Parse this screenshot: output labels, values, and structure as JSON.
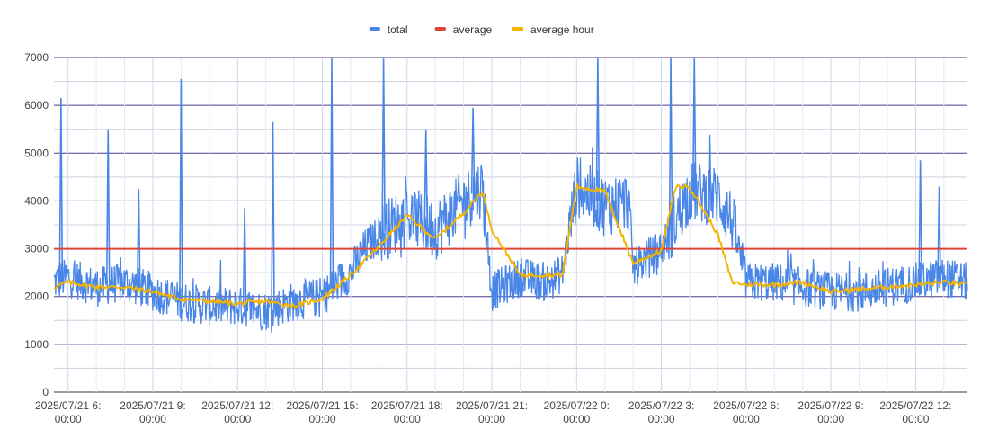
{
  "chart_data": {
    "type": "line",
    "title": "",
    "xlabel": "",
    "ylabel": "",
    "ylim": [
      0,
      7000
    ],
    "xlim": [
      "2025/07/21 05:30",
      "2025/07/22 13:50"
    ],
    "grid": true,
    "legend_position": "top",
    "y_ticks": [
      "0",
      "1000",
      "2000",
      "3000",
      "4000",
      "5000",
      "6000",
      "7000"
    ],
    "y_tick_values": [
      0,
      1000,
      2000,
      3000,
      4000,
      5000,
      6000,
      7000
    ],
    "x_ticks": [
      {
        "x": "2025/07/21 06:00",
        "line1": "2025/07/21 6:",
        "line2": "00:00"
      },
      {
        "x": "2025/07/21 09:00",
        "line1": "2025/07/21 9:",
        "line2": "00:00"
      },
      {
        "x": "2025/07/21 12:00",
        "line1": "2025/07/21 12:",
        "line2": "00:00"
      },
      {
        "x": "2025/07/21 15:00",
        "line1": "2025/07/21 15:",
        "line2": "00:00"
      },
      {
        "x": "2025/07/21 18:00",
        "line1": "2025/07/21 18:",
        "line2": "00:00"
      },
      {
        "x": "2025/07/21 21:00",
        "line1": "2025/07/21 21:",
        "line2": "00:00"
      },
      {
        "x": "2025/07/22 00:00",
        "line1": "2025/07/22 0:",
        "line2": "00:00"
      },
      {
        "x": "2025/07/22 03:00",
        "line1": "2025/07/22 3:",
        "line2": "00:00"
      },
      {
        "x": "2025/07/22 06:00",
        "line1": "2025/07/22 6:",
        "line2": "00:00"
      },
      {
        "x": "2025/07/22 09:00",
        "line1": "2025/07/22 9:",
        "line2": "00:00"
      },
      {
        "x": "2025/07/22 12:00",
        "line1": "2025/07/22 12:",
        "line2": "00:00"
      }
    ],
    "series": [
      {
        "name": "total",
        "color": "#4a86e8",
        "x": [
          "2025/07/21 05:30",
          "2025/07/21 06:00",
          "2025/07/21 07:00",
          "2025/07/21 08:00",
          "2025/07/21 09:00",
          "2025/07/21 10:00",
          "2025/07/21 11:00",
          "2025/07/21 12:00",
          "2025/07/21 13:00",
          "2025/07/21 14:00",
          "2025/07/21 15:00",
          "2025/07/21 16:00",
          "2025/07/21 16:30",
          "2025/07/21 17:00",
          "2025/07/21 18:00",
          "2025/07/21 19:00",
          "2025/07/21 20:00",
          "2025/07/21 20:40",
          "2025/07/21 21:00",
          "2025/07/21 22:00",
          "2025/07/21 23:00",
          "2025/07/21 23:30",
          "2025/07/22 00:00",
          "2025/07/22 01:00",
          "2025/07/22 01:50",
          "2025/07/22 02:00",
          "2025/07/22 03:00",
          "2025/07/22 04:00",
          "2025/07/22 05:00",
          "2025/07/22 05:30",
          "2025/07/22 06:00",
          "2025/07/22 07:00",
          "2025/07/22 08:00",
          "2025/07/22 09:00",
          "2025/07/22 10:00",
          "2025/07/22 11:00",
          "2025/07/22 12:00",
          "2025/07/22 13:00",
          "2025/07/22 13:50"
        ],
        "values": [
          2300,
          2400,
          2200,
          2300,
          2100,
          1900,
          1800,
          1800,
          1700,
          1900,
          2000,
          2500,
          3000,
          3300,
          3700,
          3400,
          4000,
          4300,
          2100,
          2400,
          2300,
          2500,
          4300,
          3900,
          4000,
          2600,
          3000,
          4200,
          4100,
          3600,
          2300,
          2300,
          2200,
          2100,
          2100,
          2200,
          2300,
          2400,
          2300
        ],
        "spikes": [
          {
            "x": "2025/07/21 05:45",
            "value": 6150
          },
          {
            "x": "2025/07/21 07:25",
            "value": 5500
          },
          {
            "x": "2025/07/21 08:30",
            "value": 4250
          },
          {
            "x": "2025/07/21 10:00",
            "value": 6550
          },
          {
            "x": "2025/07/21 12:15",
            "value": 3850
          },
          {
            "x": "2025/07/21 13:15",
            "value": 5650
          },
          {
            "x": "2025/07/21 15:20",
            "value": 7000
          },
          {
            "x": "2025/07/21 17:10",
            "value": 7000
          },
          {
            "x": "2025/07/21 18:40",
            "value": 5500
          },
          {
            "x": "2025/07/21 20:20",
            "value": 5950
          },
          {
            "x": "2025/07/22 00:45",
            "value": 7000
          },
          {
            "x": "2025/07/22 03:20",
            "value": 7000
          },
          {
            "x": "2025/07/22 04:10",
            "value": 7000
          },
          {
            "x": "2025/07/22 12:10",
            "value": 4850
          },
          {
            "x": "2025/07/22 12:50",
            "value": 4300
          }
        ]
      },
      {
        "name": "average",
        "color": "#db4437",
        "x": [
          "2025/07/21 05:30",
          "2025/07/22 13:50"
        ],
        "values": [
          3000,
          3000
        ]
      },
      {
        "name": "average hour",
        "color": "#f4b400",
        "x": [
          "2025/07/21 05:30",
          "2025/07/21 06:00",
          "2025/07/21 07:00",
          "2025/07/21 08:00",
          "2025/07/21 09:00",
          "2025/07/21 10:00",
          "2025/07/21 11:00",
          "2025/07/21 12:00",
          "2025/07/21 13:00",
          "2025/07/21 14:00",
          "2025/07/21 15:00",
          "2025/07/21 16:00",
          "2025/07/21 17:00",
          "2025/07/21 18:00",
          "2025/07/21 19:00",
          "2025/07/21 20:00",
          "2025/07/21 20:40",
          "2025/07/21 21:00",
          "2025/07/21 22:00",
          "2025/07/21 23:00",
          "2025/07/21 23:30",
          "2025/07/22 00:00",
          "2025/07/22 01:00",
          "2025/07/22 02:00",
          "2025/07/22 03:00",
          "2025/07/22 03:30",
          "2025/07/22 04:00",
          "2025/07/22 05:00",
          "2025/07/22 05:30",
          "2025/07/22 06:00",
          "2025/07/22 07:00",
          "2025/07/22 08:00",
          "2025/07/22 09:00",
          "2025/07/22 10:00",
          "2025/07/22 11:00",
          "2025/07/22 12:00",
          "2025/07/22 13:00",
          "2025/07/22 13:50"
        ],
        "values": [
          2200,
          2300,
          2200,
          2200,
          2100,
          1950,
          1900,
          1850,
          1900,
          1800,
          1950,
          2450,
          3050,
          3700,
          3200,
          3750,
          4200,
          3400,
          2450,
          2450,
          2450,
          4300,
          4200,
          2700,
          2950,
          4300,
          4300,
          3300,
          2300,
          2250,
          2250,
          2300,
          2100,
          2150,
          2200,
          2250,
          2300,
          2250
        ]
      }
    ]
  }
}
